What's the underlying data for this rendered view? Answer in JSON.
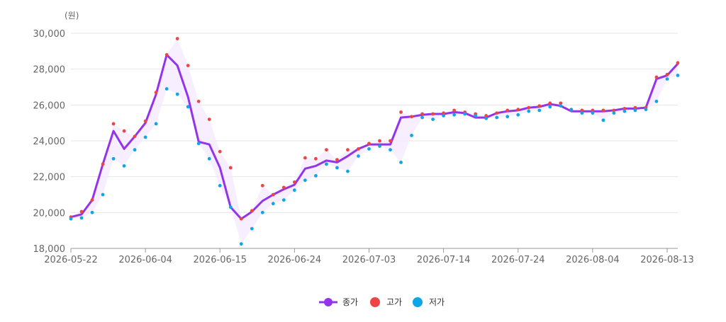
{
  "chart_data": {
    "type": "line",
    "y_unit_label": "(원)",
    "ylim": [
      18000,
      30000
    ],
    "y_ticks": [
      "18,000",
      "20,000",
      "22,000",
      "24,000",
      "26,000",
      "28,000",
      "30,000"
    ],
    "y_tick_values": [
      18000,
      20000,
      22000,
      24000,
      26000,
      28000,
      30000
    ],
    "x_ticks": [
      "2026-05-22",
      "2026-06-04",
      "2026-06-15",
      "2026-06-24",
      "2026-07-03",
      "2026-07-14",
      "2026-07-24",
      "2026-08-04",
      "2026-08-13"
    ],
    "x_tick_indices": [
      0,
      7,
      14,
      21,
      28,
      35,
      42,
      49,
      56
    ],
    "grid": true,
    "legend_position": "bottom-center",
    "colors": {
      "close": "#9333ea",
      "high": "#ef4444",
      "low": "#0ea5e9",
      "band": "#f3e8ff",
      "grid": "#e6e6e6",
      "axis": "#999999"
    },
    "series": [
      {
        "name": "종가",
        "values": [
          19750,
          19900,
          20700,
          22700,
          24550,
          23550,
          24250,
          25000,
          26600,
          28800,
          28200,
          26450,
          23950,
          23800,
          22500,
          20300,
          19650,
          20050,
          20650,
          21000,
          21300,
          21550,
          22450,
          22600,
          22900,
          22800,
          23150,
          23550,
          23800,
          23800,
          23800,
          25300,
          25350,
          25450,
          25500,
          25500,
          25600,
          25550,
          25300,
          25300,
          25550,
          25650,
          25700,
          25850,
          25900,
          26050,
          25950,
          25650,
          25650,
          25650,
          25650,
          25700,
          25800,
          25800,
          25850,
          27450,
          27650,
          28300
        ]
      },
      {
        "name": "고가",
        "values": [
          19750,
          20050,
          20700,
          22700,
          24950,
          24550,
          24250,
          25100,
          26700,
          28800,
          29700,
          28200,
          26200,
          25200,
          23400,
          22500,
          19650,
          20100,
          21500,
          21000,
          21400,
          21700,
          23050,
          23000,
          23500,
          22950,
          23500,
          23550,
          23850,
          24000,
          24000,
          25600,
          25350,
          25500,
          25500,
          25550,
          25700,
          25600,
          25500,
          25400,
          25550,
          25700,
          25750,
          25850,
          25950,
          26100,
          26100,
          25700,
          25700,
          25700,
          25700,
          25700,
          25800,
          25850,
          25850,
          27550,
          27700,
          28350
        ]
      },
      {
        "name": "저가",
        "values": [
          19650,
          19700,
          20000,
          21000,
          23000,
          22600,
          23500,
          24200,
          24950,
          26900,
          26600,
          25900,
          23850,
          23000,
          21500,
          20300,
          18250,
          19100,
          20000,
          20500,
          20700,
          21250,
          21800,
          22050,
          22700,
          22500,
          22300,
          23150,
          23550,
          23700,
          23500,
          22800,
          24300,
          25300,
          25200,
          25400,
          25450,
          25500,
          25400,
          25250,
          25300,
          25350,
          25450,
          25650,
          25700,
          25900,
          25950,
          25750,
          25550,
          25550,
          25150,
          25550,
          25650,
          25700,
          25750,
          26200,
          27450,
          27650
        ]
      }
    ]
  }
}
